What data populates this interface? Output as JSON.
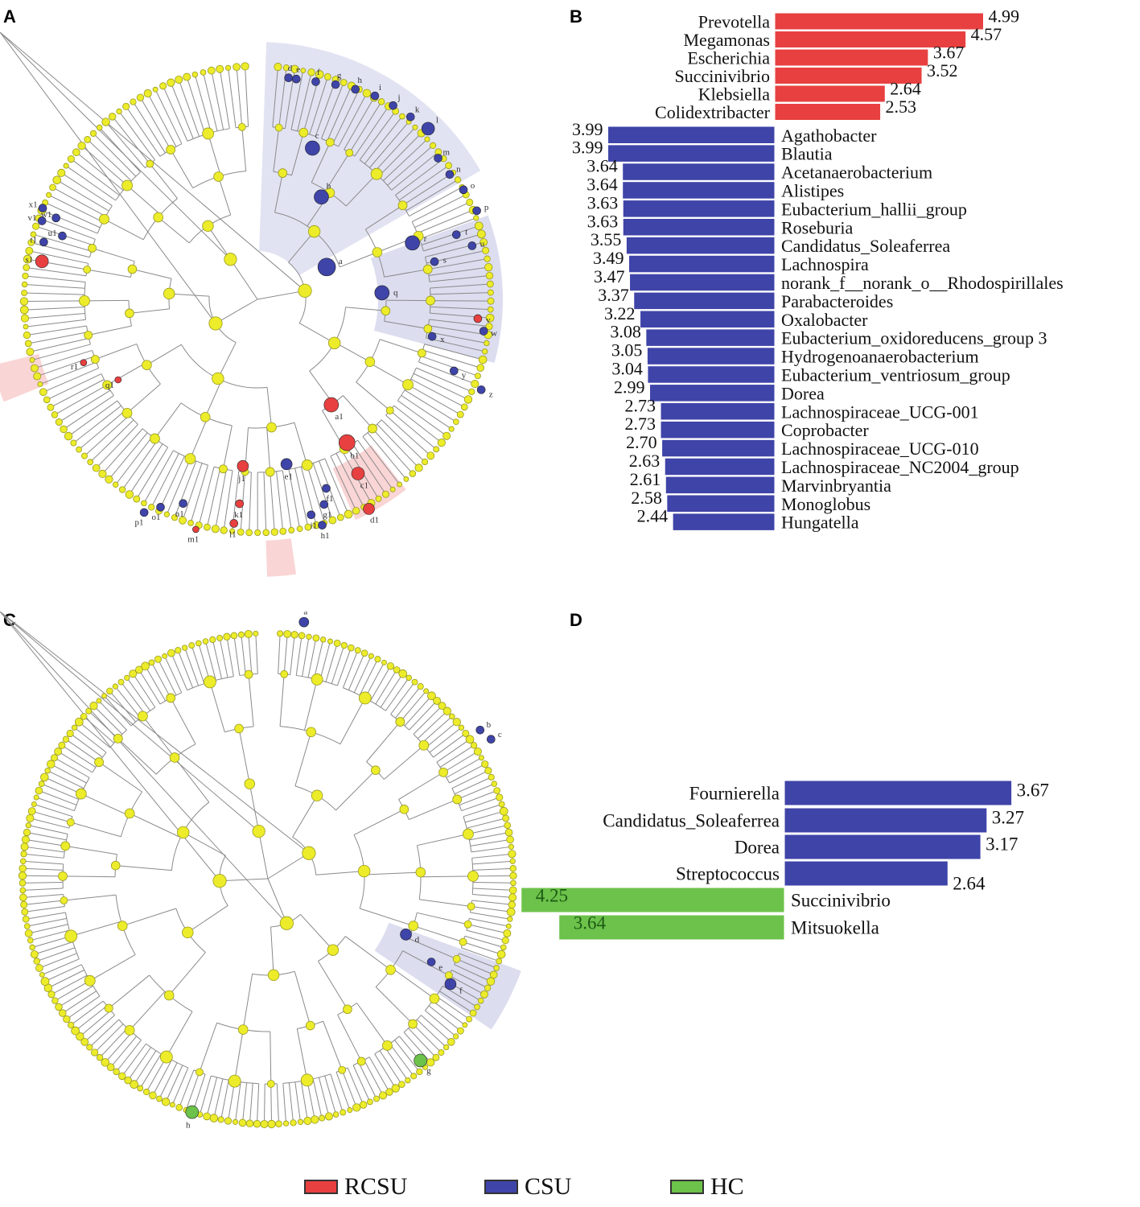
{
  "panel_letters": {
    "a": "A",
    "b": "B",
    "c": "C",
    "d": "D"
  },
  "colors": {
    "rcsu": "#e84040",
    "csu": "#3f44a8",
    "hc": "#6cc24a",
    "node": "#ecec2a",
    "branch": "#8a8a8a"
  },
  "legend": [
    {
      "label": "RCSU",
      "color": "#e84040"
    },
    {
      "label": "CSU",
      "color": "#3f44a8"
    },
    {
      "label": "HC",
      "color": "#6cc24a"
    }
  ],
  "chart_data": [
    {
      "panel": "B",
      "type": "bar",
      "orientation": "horizontal-diverging",
      "title": "",
      "xlabel": "",
      "ylabel": "",
      "series": [
        {
          "name": "RCSU",
          "color": "#e84040",
          "side": "right",
          "categories": [
            "Prevotella",
            "Megamonas",
            "Escherichia",
            "Succinivibrio",
            "Klebsiella",
            "Colidextribacter"
          ],
          "values": [
            4.99,
            4.57,
            3.67,
            3.52,
            2.64,
            2.53
          ],
          "value_labels": [
            "4.99",
            "4.57",
            "3.67",
            "3.52",
            "2.64",
            "2.53"
          ]
        },
        {
          "name": "CSU",
          "color": "#3f44a8",
          "side": "left",
          "categories": [
            "Agathobacter",
            "Blautia",
            "Acetanaerobacterium",
            "Alistipes",
            "Eubacterium_hallii_group",
            "Roseburia",
            "Candidatus_Soleaferrea",
            "Lachnospira",
            "norank_f__norank_o__Rhodospirillales",
            "Parabacteroides",
            "Oxalobacter",
            "Eubacterium_oxidoreducens_group 3",
            "Hydrogenoanaerobacterium",
            "Eubacterium_ventriosum_group",
            "Dorea",
            "Lachnospiraceae_UCG-001",
            "Coprobacter",
            "Lachnospiraceae_UCG-010",
            "Lachnospiraceae_NC2004_group",
            "Marvinbryantia",
            "Monoglobus",
            "Hungatella"
          ],
          "values": [
            3.99,
            3.99,
            3.64,
            3.64,
            3.63,
            3.63,
            3.55,
            3.49,
            3.47,
            3.37,
            3.22,
            3.08,
            3.05,
            3.04,
            2.99,
            2.73,
            2.73,
            2.7,
            2.63,
            2.61,
            2.58,
            2.44
          ],
          "value_labels": [
            "3.99",
            "3.99",
            "3.64",
            "3.64",
            "3.63",
            "3.63",
            "3.55",
            "3.49",
            "3.47",
            "3.37",
            "3.22",
            "3.08",
            "3.05",
            "3.04",
            "2.99",
            "2.73",
            "2.73",
            "2.70",
            "2.63",
            "2.61",
            "2.58",
            "2.44"
          ]
        }
      ]
    },
    {
      "panel": "D",
      "type": "bar",
      "orientation": "horizontal-diverging",
      "title": "",
      "xlabel": "",
      "ylabel": "",
      "series": [
        {
          "name": "CSU",
          "color": "#3f44a8",
          "side": "right",
          "categories": [
            "Fournierella",
            "Candidatus_Soleaferrea",
            "Dorea",
            "Streptococcus"
          ],
          "values": [
            3.67,
            3.27,
            3.17,
            2.64
          ],
          "value_labels": [
            "3.67",
            "3.27",
            "3.17",
            "2.64"
          ]
        },
        {
          "name": "HC",
          "color": "#6cc24a",
          "side": "left",
          "categories": [
            "Succinivibrio",
            "Mitsuokella"
          ],
          "values": [
            4.25,
            3.64
          ],
          "value_labels": [
            "4.25",
            "3.64"
          ]
        }
      ]
    }
  ],
  "cladogram_a": {
    "node_labels": [
      "a",
      "b",
      "c",
      "d",
      "e",
      "f",
      "g",
      "h",
      "i",
      "j",
      "k",
      "l",
      "m",
      "n",
      "o",
      "p",
      "q",
      "r",
      "s",
      "t",
      "u",
      "v",
      "w",
      "x",
      "y",
      "z",
      "a1",
      "b1",
      "c1",
      "d1",
      "e1",
      "f1",
      "g1",
      "h1",
      "i1",
      "j1",
      "k1",
      "l1",
      "m1",
      "n1",
      "o1",
      "p1",
      "q1",
      "r1",
      "s1",
      "t1",
      "u1",
      "v1",
      "w1",
      "x1"
    ]
  },
  "cladogram_c": {
    "node_labels": [
      "a",
      "b",
      "c",
      "d",
      "e",
      "f",
      "g",
      "h"
    ]
  }
}
